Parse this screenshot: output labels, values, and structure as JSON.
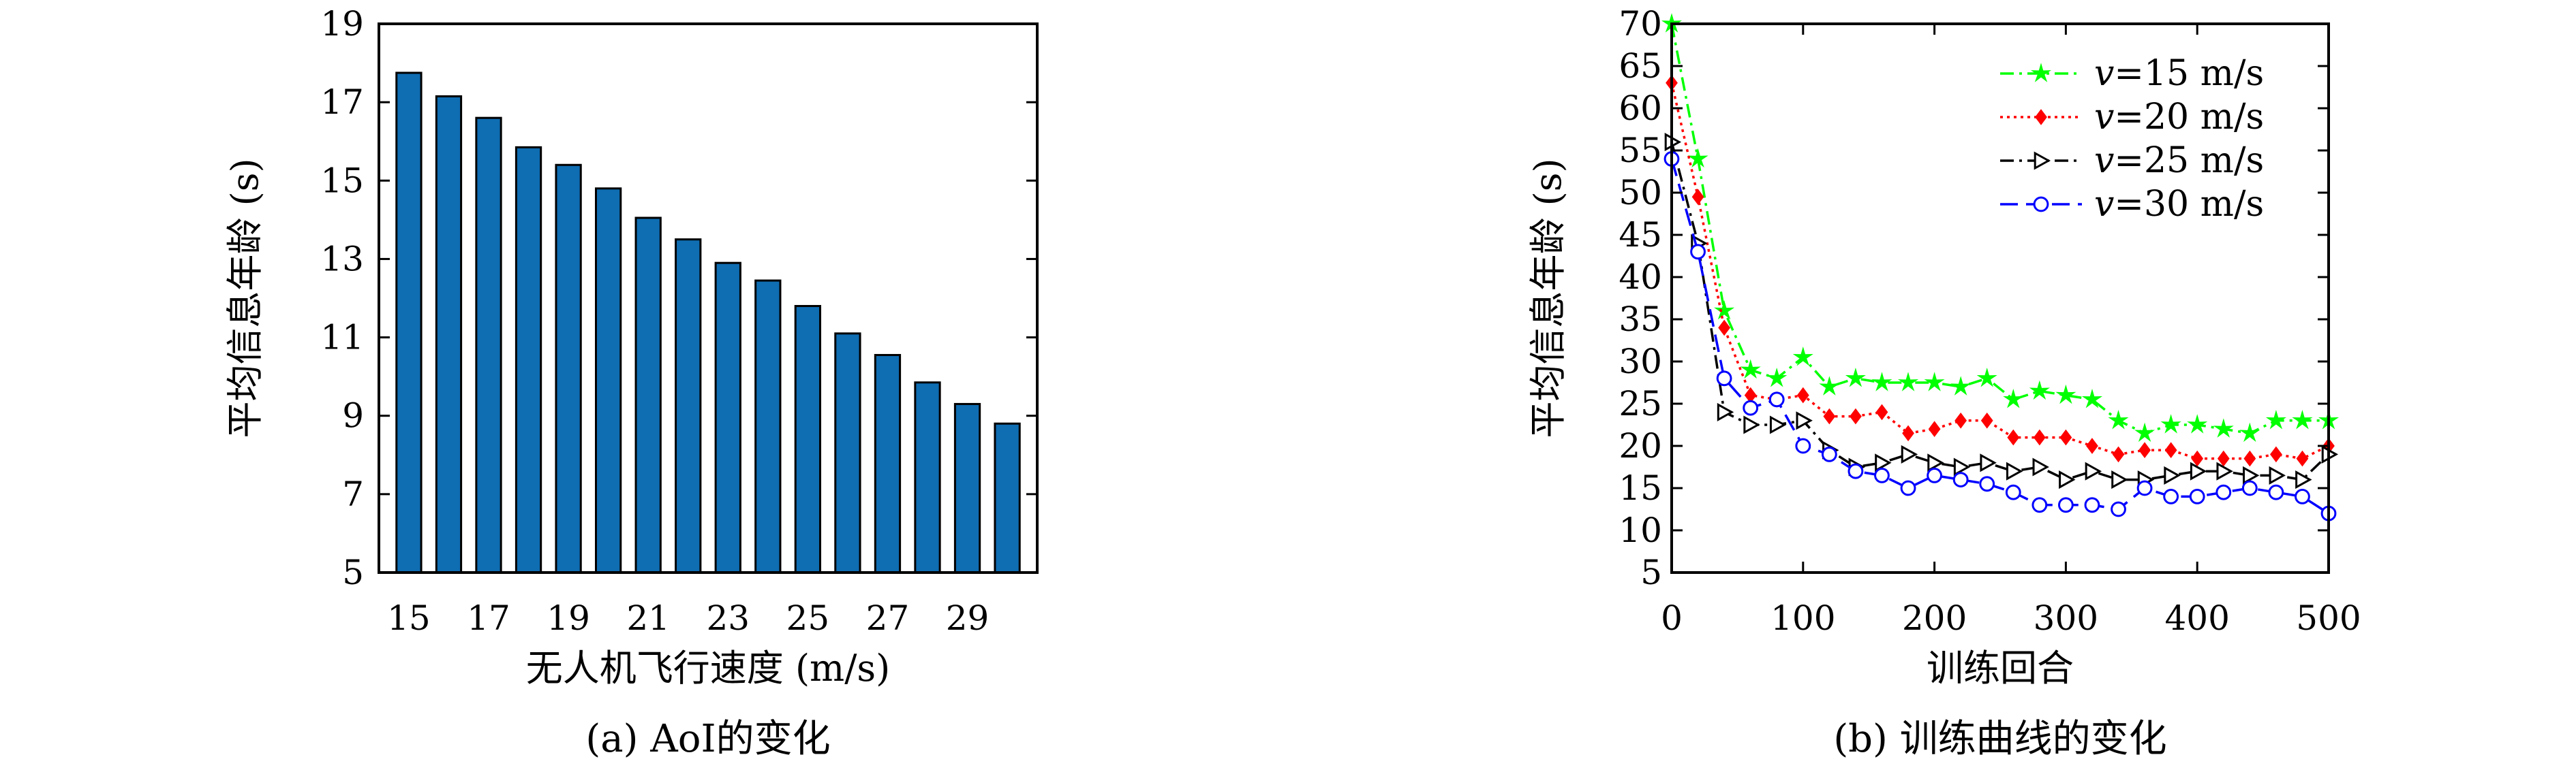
{
  "chart_data": [
    {
      "type": "bar",
      "caption": "(a) AoI的变化",
      "xlabel": "无人机飞行速度 (m/s)",
      "ylabel": "平均信息年龄 (s)",
      "categories": [
        15,
        16,
        17,
        18,
        19,
        20,
        21,
        22,
        23,
        24,
        25,
        26,
        27,
        28,
        29,
        30
      ],
      "xtick_labels": [
        "15",
        "17",
        "19",
        "21",
        "23",
        "25",
        "27",
        "29"
      ],
      "xtick_values": [
        15,
        17,
        19,
        21,
        23,
        25,
        27,
        29
      ],
      "values": [
        17.75,
        17.15,
        16.6,
        15.85,
        15.4,
        14.8,
        14.05,
        13.5,
        12.9,
        12.45,
        11.8,
        11.1,
        10.55,
        9.85,
        9.3,
        8.8
      ],
      "ylim": [
        5,
        19
      ],
      "yticks": [
        5,
        7,
        9,
        11,
        13,
        15,
        17,
        19
      ],
      "bar_color": "#0f6db2"
    },
    {
      "type": "line",
      "caption": "(b) 训练曲线的变化",
      "xlabel": "训练回合",
      "ylabel": "平均信息年龄 (s)",
      "xlim": [
        0,
        500
      ],
      "ylim": [
        5,
        70
      ],
      "xticks": [
        0,
        100,
        200,
        300,
        400,
        500
      ],
      "yticks": [
        5,
        10,
        15,
        20,
        25,
        30,
        35,
        40,
        45,
        50,
        55,
        60,
        65,
        70
      ],
      "legend_position": "top-right",
      "x": [
        0,
        20,
        40,
        60,
        80,
        100,
        120,
        140,
        160,
        180,
        200,
        220,
        240,
        260,
        280,
        300,
        320,
        340,
        360,
        380,
        400,
        420,
        440,
        460,
        480,
        500
      ],
      "series": [
        {
          "name": "v=15 m/s",
          "legend_var": "v",
          "legend_rest": "=15 m/s",
          "color": "#00ff00",
          "dash": "20,8,4,8",
          "marker": "star",
          "values": [
            70,
            54,
            36,
            29,
            28,
            30.5,
            27,
            28,
            27.5,
            27.5,
            27.5,
            27,
            28,
            25.5,
            26.5,
            26,
            25.5,
            23,
            21.5,
            22.5,
            22.5,
            22,
            21.5,
            23,
            23,
            23
          ]
        },
        {
          "name": "v=20 m/s",
          "legend_var": "v",
          "legend_rest": "=20 m/s",
          "color": "#ff0000",
          "dash": "4,6",
          "marker": "diamond",
          "values": [
            63,
            49.5,
            34,
            26,
            25.5,
            26,
            23.5,
            23.5,
            24,
            21.5,
            22,
            23,
            23,
            21,
            21,
            21,
            20,
            19,
            19.5,
            19.5,
            18.5,
            18.5,
            18.5,
            19,
            18.5,
            20
          ]
        },
        {
          "name": "v=25 m/s",
          "legend_var": "v",
          "legend_rest": "=25 m/s",
          "color": "#000000",
          "dash": "20,8,4,8",
          "marker": "triangle",
          "values": [
            56,
            44,
            24,
            22.5,
            22.5,
            23,
            19.5,
            17.5,
            18,
            19,
            18,
            17.5,
            18,
            17,
            17.5,
            16,
            17,
            16,
            16,
            16.5,
            17,
            17,
            16.5,
            16.5,
            16,
            19
          ]
        },
        {
          "name": "v=30 m/s",
          "legend_var": "v",
          "legend_rest": "=30 m/s",
          "color": "#0000ff",
          "dash": "26,12",
          "marker": "circle",
          "values": [
            54,
            43,
            28,
            24.5,
            25.5,
            20,
            19,
            17,
            16.5,
            15,
            16.5,
            16,
            15.5,
            14.5,
            13,
            13,
            13,
            12.5,
            15,
            14,
            14,
            14.5,
            15,
            14.5,
            14,
            12
          ]
        }
      ]
    }
  ]
}
